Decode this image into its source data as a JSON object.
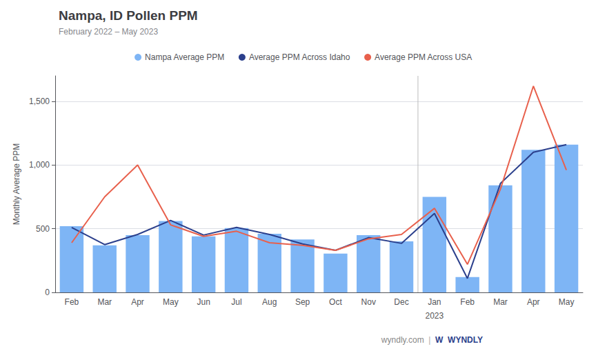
{
  "chart_data": {
    "type": "bar",
    "title": "Nampa, ID Pollen PPM",
    "subtitle": "February 2022 – May 2023",
    "ylabel": "Monthly Average PPM",
    "categories": [
      "Feb",
      "Mar",
      "Apr",
      "May",
      "Jun",
      "Jul",
      "Aug",
      "Sep",
      "Oct",
      "Nov",
      "Dec",
      "Jan",
      "Feb",
      "Mar",
      "Apr",
      "May"
    ],
    "series": [
      {
        "name": "Nampa Average PPM",
        "type": "bar",
        "color": "#7EB5F5",
        "values": [
          520,
          370,
          450,
          560,
          440,
          505,
          460,
          415,
          305,
          450,
          400,
          750,
          120,
          840,
          1120,
          1160
        ]
      },
      {
        "name": "Average PPM Across Idaho",
        "type": "line",
        "marker": "none",
        "color": "#2B3F8C",
        "values": [
          510,
          375,
          455,
          565,
          450,
          510,
          455,
          380,
          330,
          430,
          385,
          620,
          110,
          855,
          1100,
          1160
        ]
      },
      {
        "name": "Average PPM Across USA",
        "type": "line",
        "marker": "none",
        "color": "#E8604C",
        "values": [
          390,
          750,
          1000,
          530,
          440,
          480,
          390,
          370,
          330,
          420,
          455,
          660,
          220,
          810,
          1620,
          960
        ]
      }
    ],
    "ylim": [
      0,
      1700
    ],
    "yticks": [
      0,
      500,
      {
        "value": 1000,
        "label": "1,000"
      },
      {
        "value": 1500,
        "label": "1,500"
      }
    ],
    "grid": true,
    "legend": "top",
    "annotations": [
      {
        "text": "2023",
        "x": "Jan"
      },
      {
        "text": "wyndly.com"
      },
      {
        "text": "|"
      },
      {
        "text": "W  WYNDLY"
      }
    ]
  }
}
